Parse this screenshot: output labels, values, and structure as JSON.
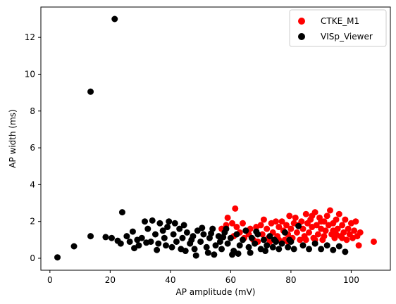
{
  "chart_data": {
    "type": "scatter",
    "title": "",
    "xlabel": "AP amplitude (mV)",
    "ylabel": "AP width (ms)",
    "xlim": [
      -3,
      113
    ],
    "ylim": [
      -0.65,
      13.65
    ],
    "xticks": [
      0,
      20,
      40,
      60,
      80,
      100
    ],
    "yticks": [
      0,
      2,
      4,
      6,
      8,
      10,
      12
    ],
    "grid": false,
    "legend_position": "top-right",
    "series": [
      {
        "name": "CTKE_M1",
        "color": "#ff0000",
        "points": [
          [
            60.5,
            1.9
          ],
          [
            61.5,
            2.7
          ],
          [
            59.0,
            2.2
          ],
          [
            57.0,
            1.6
          ],
          [
            58.5,
            1.8
          ],
          [
            61.0,
            1.2
          ],
          [
            63.0,
            1.4
          ],
          [
            64.5,
            1.1
          ],
          [
            66.0,
            1.3
          ],
          [
            67.5,
            1.0
          ],
          [
            68.5,
            1.7
          ],
          [
            69.0,
            0.9
          ],
          [
            70.5,
            1.3
          ],
          [
            71.0,
            2.1
          ],
          [
            72.0,
            1.6
          ],
          [
            72.5,
            1.1
          ],
          [
            73.5,
            1.9
          ],
          [
            74.0,
            1.4
          ],
          [
            75.0,
            2.0
          ],
          [
            75.5,
            1.2
          ],
          [
            76.0,
            1.7
          ],
          [
            77.0,
            2.0
          ],
          [
            77.5,
            1.5
          ],
          [
            78.0,
            1.0
          ],
          [
            78.5,
            1.8
          ],
          [
            79.0,
            1.3
          ],
          [
            79.5,
            2.3
          ],
          [
            80.0,
            1.6
          ],
          [
            80.5,
            1.1
          ],
          [
            81.0,
            1.9
          ],
          [
            81.5,
            2.2
          ],
          [
            82.0,
            1.4
          ],
          [
            82.5,
            1.8
          ],
          [
            83.0,
            1.0
          ],
          [
            83.5,
            2.0
          ],
          [
            84.0,
            1.6
          ],
          [
            84.5,
            1.2
          ],
          [
            85.0,
            2.4
          ],
          [
            85.5,
            1.9
          ],
          [
            86.0,
            1.4
          ],
          [
            86.5,
            2.1
          ],
          [
            87.0,
            1.7
          ],
          [
            87.5,
            1.1
          ],
          [
            88.0,
            2.5
          ],
          [
            88.5,
            1.8
          ],
          [
            89.0,
            1.3
          ],
          [
            89.5,
            2.2
          ],
          [
            90.0,
            1.6
          ],
          [
            90.5,
            1.0
          ],
          [
            91.0,
            2.0
          ],
          [
            91.5,
            1.5
          ],
          [
            92.0,
            2.3
          ],
          [
            92.5,
            1.8
          ],
          [
            93.0,
            2.6
          ],
          [
            93.5,
            1.3
          ],
          [
            94.0,
            1.9
          ],
          [
            94.5,
            1.1
          ],
          [
            95.0,
            2.1
          ],
          [
            95.5,
            1.6
          ],
          [
            96.0,
            2.4
          ],
          [
            96.5,
            1.2
          ],
          [
            97.0,
            1.8
          ],
          [
            97.5,
            1.4
          ],
          [
            98.0,
            2.1
          ],
          [
            98.5,
            1.0
          ],
          [
            99.0,
            1.6
          ],
          [
            99.5,
            1.3
          ],
          [
            100.0,
            1.9
          ],
          [
            100.5,
            1.1
          ],
          [
            101.0,
            1.5
          ],
          [
            101.5,
            2.0
          ],
          [
            102.0,
            1.2
          ],
          [
            102.5,
            0.7
          ],
          [
            103.0,
            1.4
          ],
          [
            107.5,
            0.9
          ],
          [
            85.0,
            1.0
          ],
          [
            88.0,
            1.0
          ],
          [
            91.0,
            1.2
          ],
          [
            94.0,
            1.5
          ],
          [
            97.0,
            1.1
          ],
          [
            79.0,
            0.9
          ],
          [
            76.0,
            1.0
          ],
          [
            73.0,
            0.9
          ],
          [
            70.0,
            1.8
          ],
          [
            66.5,
            1.6
          ],
          [
            64.0,
            1.9
          ],
          [
            62.0,
            1.7
          ],
          [
            87.0,
            2.3
          ],
          [
            90.0,
            2.0
          ],
          [
            95.0,
            1.3
          ]
        ]
      },
      {
        "name": "VISp_Viewer",
        "color": "#000000",
        "points": [
          [
            2.5,
            0.05
          ],
          [
            8.0,
            0.65
          ],
          [
            13.5,
            9.05
          ],
          [
            21.5,
            13.0
          ],
          [
            13.5,
            1.2
          ],
          [
            24.0,
            2.5
          ],
          [
            18.5,
            1.15
          ],
          [
            20.5,
            1.1
          ],
          [
            22.5,
            0.95
          ],
          [
            23.5,
            0.8
          ],
          [
            25.5,
            1.2
          ],
          [
            26.5,
            0.9
          ],
          [
            27.5,
            1.45
          ],
          [
            28.0,
            0.55
          ],
          [
            29.5,
            0.7
          ],
          [
            30.5,
            1.1
          ],
          [
            31.5,
            2.0
          ],
          [
            32.5,
            1.6
          ],
          [
            33.5,
            0.9
          ],
          [
            34.0,
            2.05
          ],
          [
            35.0,
            1.3
          ],
          [
            36.0,
            0.8
          ],
          [
            36.5,
            1.9
          ],
          [
            37.5,
            1.5
          ],
          [
            38.0,
            1.1
          ],
          [
            39.0,
            1.7
          ],
          [
            39.5,
            2.0
          ],
          [
            40.5,
            0.6
          ],
          [
            41.0,
            1.3
          ],
          [
            42.0,
            0.9
          ],
          [
            43.0,
            1.6
          ],
          [
            44.0,
            1.1
          ],
          [
            45.0,
            0.4
          ],
          [
            45.5,
            1.4
          ],
          [
            46.5,
            0.8
          ],
          [
            47.5,
            1.2
          ],
          [
            48.0,
            0.5
          ],
          [
            49.0,
            1.5
          ],
          [
            50.0,
            0.9
          ],
          [
            51.0,
            1.3
          ],
          [
            52.0,
            0.6
          ],
          [
            53.0,
            1.1
          ],
          [
            54.0,
            1.6
          ],
          [
            55.0,
            0.7
          ],
          [
            56.0,
            1.2
          ],
          [
            57.0,
            0.5
          ],
          [
            58.0,
            1.4
          ],
          [
            59.0,
            0.8
          ],
          [
            60.0,
            1.1
          ],
          [
            61.0,
            0.4
          ],
          [
            62.0,
            1.3
          ],
          [
            63.0,
            0.7
          ],
          [
            64.0,
            1.0
          ],
          [
            65.0,
            1.5
          ],
          [
            66.0,
            0.6
          ],
          [
            67.0,
            1.1
          ],
          [
            68.0,
            0.8
          ],
          [
            69.0,
            1.3
          ],
          [
            70.0,
            0.5
          ],
          [
            71.0,
            1.0
          ],
          [
            72.0,
            0.7
          ],
          [
            73.0,
            1.2
          ],
          [
            74.0,
            0.6
          ],
          [
            75.0,
            0.9
          ],
          [
            76.0,
            0.5
          ],
          [
            77.0,
            0.8
          ],
          [
            78.0,
            1.4
          ],
          [
            79.0,
            0.6
          ],
          [
            80.0,
            0.9
          ],
          [
            81.0,
            0.5
          ],
          [
            82.5,
            1.75
          ],
          [
            84.0,
            0.7
          ],
          [
            86.0,
            0.5
          ],
          [
            88.0,
            0.8
          ],
          [
            90.0,
            0.5
          ],
          [
            92.0,
            0.7
          ],
          [
            94.0,
            0.45
          ],
          [
            96.0,
            0.65
          ],
          [
            98.0,
            0.35
          ],
          [
            47.0,
            1.0
          ],
          [
            52.5,
            0.3
          ],
          [
            56.5,
            0.9
          ],
          [
            43.5,
            0.5
          ],
          [
            38.5,
            0.7
          ],
          [
            35.5,
            0.45
          ],
          [
            32.0,
            0.85
          ],
          [
            29.0,
            1.0
          ],
          [
            60.5,
            0.2
          ],
          [
            66.5,
            0.3
          ],
          [
            71.5,
            0.4
          ],
          [
            74.5,
            1.0
          ],
          [
            79.5,
            1.0
          ],
          [
            68.5,
            1.45
          ],
          [
            58.5,
            1.6
          ],
          [
            50.5,
            1.65
          ],
          [
            44.5,
            1.8
          ],
          [
            41.5,
            1.9
          ],
          [
            54.5,
            0.2
          ],
          [
            48.5,
            0.15
          ],
          [
            62.5,
            0.25
          ],
          [
            57.5,
            1.15
          ],
          [
            53.5,
            1.35
          ]
        ]
      }
    ]
  }
}
